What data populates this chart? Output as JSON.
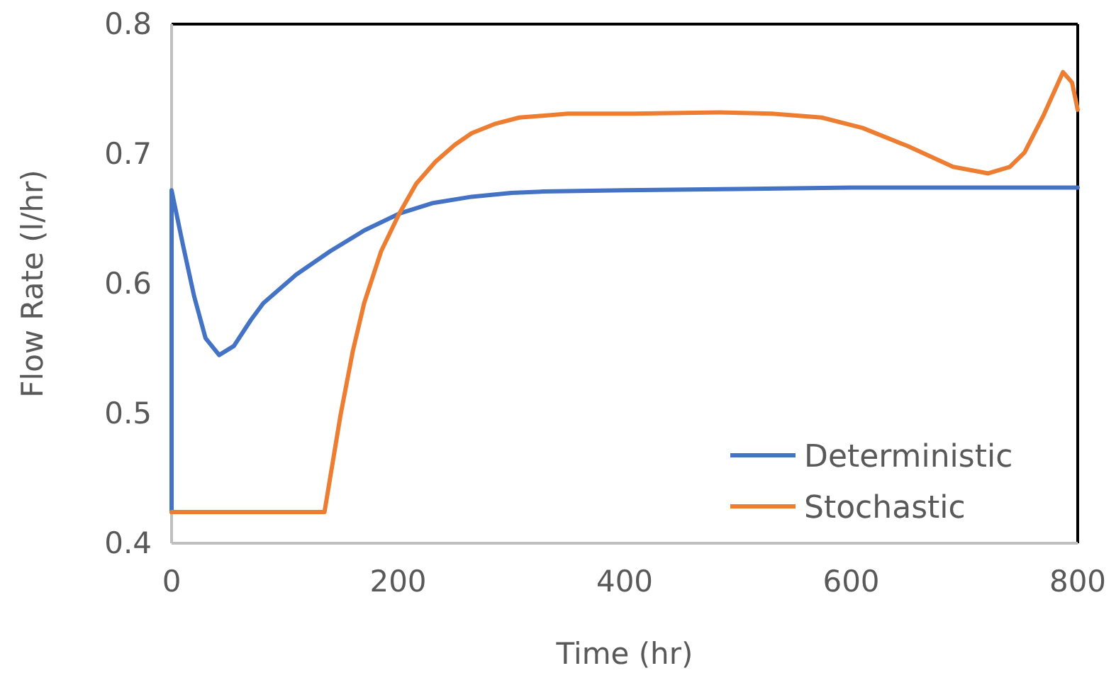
{
  "chart_data": {
    "type": "line",
    "xlabel": "Time (hr)",
    "ylabel": "Flow Rate (l/hr)",
    "xlim": [
      0,
      800
    ],
    "ylim": [
      0.4,
      0.8
    ],
    "xticks": [
      0,
      200,
      400,
      600,
      800
    ],
    "yticks": [
      0.4,
      0.5,
      0.6,
      0.7,
      0.8
    ],
    "grid": false,
    "legend": "bottom right",
    "series": [
      {
        "name": "Deterministic",
        "color": "#4472c4",
        "x": [
          0,
          0,
          10,
          20,
          30,
          42,
          55,
          70,
          81,
          110,
          140,
          170,
          201,
          230,
          265,
          300,
          328,
          400,
          500,
          600,
          700,
          800
        ],
        "values": [
          0.424,
          0.672,
          0.63,
          0.59,
          0.558,
          0.545,
          0.552,
          0.572,
          0.585,
          0.607,
          0.625,
          0.641,
          0.654,
          0.662,
          0.667,
          0.67,
          0.671,
          0.672,
          0.673,
          0.674,
          0.674,
          0.674
        ]
      },
      {
        "name": "Stochastic",
        "color": "#ed7d31",
        "x": [
          0,
          135,
          149,
          160,
          170,
          185,
          201,
          216,
          233,
          250,
          265,
          285,
          307,
          350,
          408,
          483,
          530,
          574,
          610,
          650,
          690,
          721,
          740,
          753,
          770,
          787,
          795,
          800
        ],
        "values": [
          0.424,
          0.424,
          0.498,
          0.548,
          0.585,
          0.625,
          0.654,
          0.677,
          0.694,
          0.707,
          0.716,
          0.723,
          0.728,
          0.731,
          0.731,
          0.732,
          0.731,
          0.728,
          0.72,
          0.706,
          0.69,
          0.685,
          0.69,
          0.701,
          0.73,
          0.763,
          0.755,
          0.734
        ]
      }
    ]
  }
}
